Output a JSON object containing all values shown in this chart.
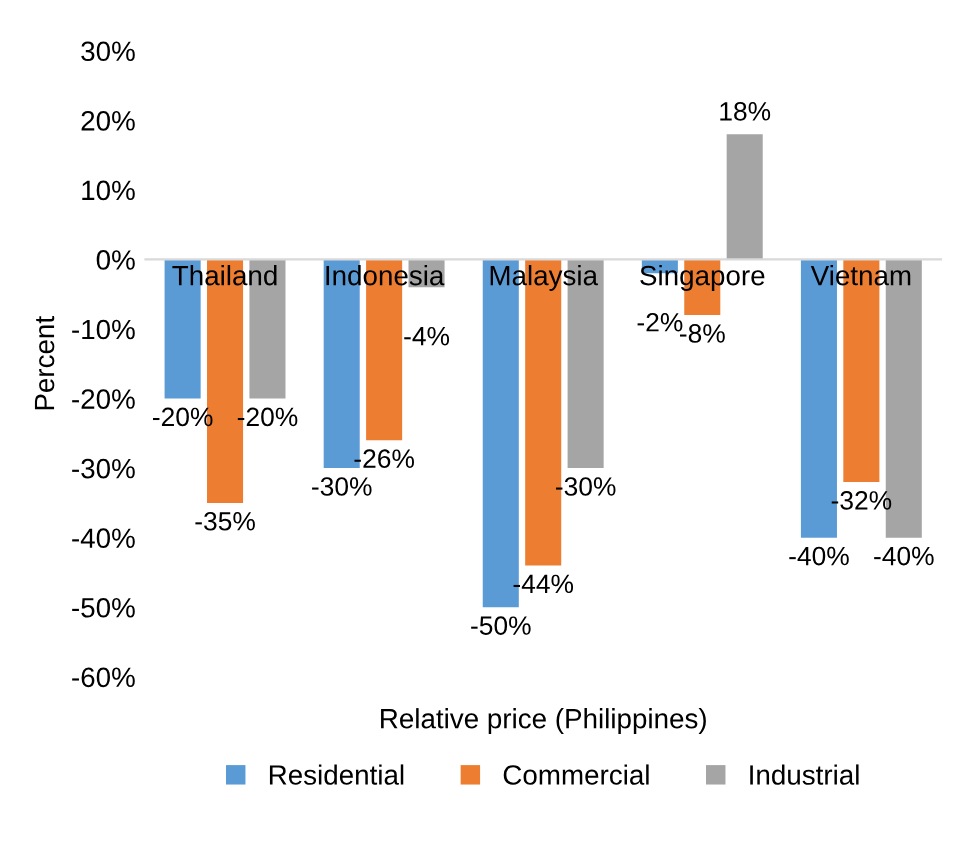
{
  "chart_data": {
    "type": "bar",
    "xlabel": "Relative price (Philippines)",
    "ylabel": "Percent",
    "categories": [
      "Thailand",
      "Indonesia",
      "Malaysia",
      "Singapore",
      "Vietnam"
    ],
    "series": [
      {
        "name": "Residential",
        "color": "#5b9bd5",
        "values": [
          -20,
          -30,
          -50,
          -2,
          -40
        ],
        "value_labels": [
          "-20%",
          "-30%",
          "-50%",
          "-2%",
          "-40%"
        ]
      },
      {
        "name": "Commercial",
        "color": "#ed7d31",
        "values": [
          -35,
          -26,
          -44,
          -8,
          -32
        ],
        "value_labels": [
          "-35%",
          "-26%",
          "-44%",
          "-8%",
          "-32%"
        ]
      },
      {
        "name": "Industrial",
        "color": "#a5a5a5",
        "values": [
          -20,
          -4,
          -30,
          18,
          -40
        ],
        "value_labels": [
          "-20%",
          "-4%",
          "-30%",
          "18%",
          "-40%"
        ]
      }
    ],
    "ylim": [
      -60,
      30
    ],
    "yticks": [
      {
        "value": -60,
        "label": "-60%"
      },
      {
        "value": -50,
        "label": "-50%"
      },
      {
        "value": -40,
        "label": "-40%"
      },
      {
        "value": -30,
        "label": "-30%"
      },
      {
        "value": -20,
        "label": "-20%"
      },
      {
        "value": -10,
        "label": "-10%"
      },
      {
        "value": 0,
        "label": "0%"
      },
      {
        "value": 10,
        "label": "10%"
      },
      {
        "value": 20,
        "label": "20%"
      },
      {
        "value": 30,
        "label": "30%"
      }
    ],
    "grid": false,
    "legend": "bottom"
  }
}
